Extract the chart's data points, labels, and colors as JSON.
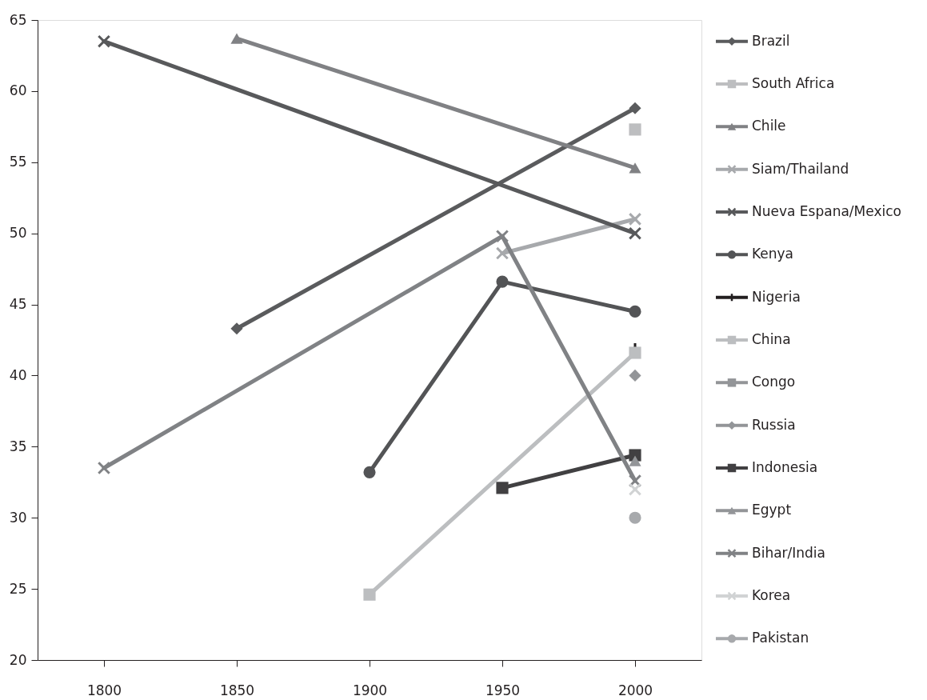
{
  "chart_data": {
    "type": "line",
    "categories": [
      "1800",
      "1850",
      "1900",
      "1950",
      "2000"
    ],
    "ylim": [
      20,
      65
    ],
    "yticks": [
      20,
      25,
      30,
      35,
      40,
      45,
      50,
      55,
      60,
      65
    ],
    "grid": false,
    "legend": "right",
    "series": [
      {
        "name": "Brazil",
        "color": "#5a5b5d",
        "marker": "diamond",
        "values": [
          null,
          43.3,
          null,
          null,
          58.8
        ]
      },
      {
        "name": "South Africa",
        "color": "#bdbec0",
        "marker": "square",
        "values": [
          null,
          null,
          null,
          null,
          57.3
        ]
      },
      {
        "name": "Chile",
        "color": "#808184",
        "marker": "triangle",
        "values": [
          null,
          63.7,
          null,
          null,
          54.6
        ]
      },
      {
        "name": "Siam/Thailand",
        "color": "#a7a9ac",
        "marker": "cross",
        "values": [
          null,
          null,
          null,
          48.6,
          51.0
        ]
      },
      {
        "name": "Nueva Espana/Mexico",
        "color": "#58595b",
        "marker": "cross",
        "values": [
          63.5,
          null,
          null,
          null,
          50.0
        ]
      },
      {
        "name": "Kenya",
        "color": "#535456",
        "marker": "circle",
        "values": [
          null,
          null,
          33.2,
          46.6,
          44.5
        ]
      },
      {
        "name": "Nigeria",
        "color": "#231f20",
        "marker": "plus",
        "values": [
          null,
          null,
          null,
          null,
          41.9
        ]
      },
      {
        "name": "China",
        "color": "#bcbec0",
        "marker": "square",
        "values": [
          null,
          null,
          24.6,
          null,
          41.6
        ]
      },
      {
        "name": "Congo",
        "color": "#939598",
        "marker": "square",
        "values": [
          null,
          null,
          null,
          null,
          null
        ]
      },
      {
        "name": "Russia",
        "color": "#939598",
        "marker": "diamond",
        "values": [
          null,
          null,
          null,
          null,
          40.0
        ]
      },
      {
        "name": "Indonesia",
        "color": "#414042",
        "marker": "square",
        "values": [
          null,
          null,
          null,
          32.1,
          34.4
        ]
      },
      {
        "name": "Egypt",
        "color": "#939598",
        "marker": "triangle",
        "values": [
          null,
          null,
          null,
          null,
          34.0
        ]
      },
      {
        "name": "Bihar/India",
        "color": "#808285",
        "marker": "cross",
        "values": [
          33.5,
          null,
          null,
          49.8,
          32.6
        ]
      },
      {
        "name": "Korea",
        "color": "#d1d3d4",
        "marker": "cross",
        "values": [
          null,
          null,
          null,
          null,
          32.0
        ]
      },
      {
        "name": "Pakistan",
        "color": "#a7a9ac",
        "marker": "circle",
        "values": [
          null,
          null,
          null,
          null,
          30.0
        ]
      }
    ]
  }
}
